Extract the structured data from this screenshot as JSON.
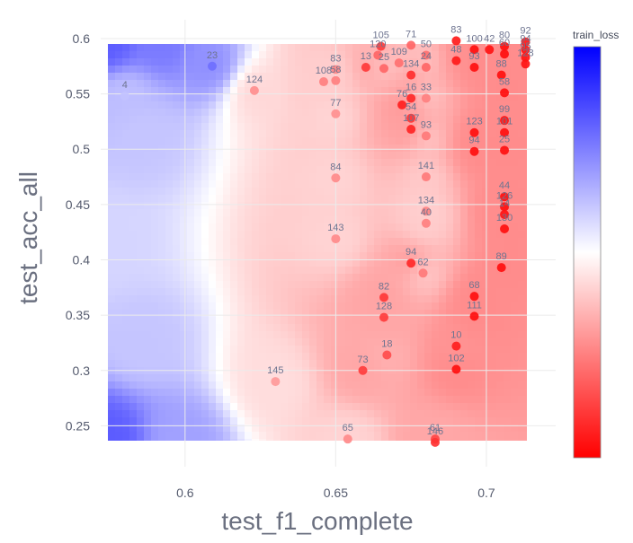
{
  "chart_data": {
    "type": "scatter",
    "title": "",
    "xlabel": "test_f1_complete",
    "ylabel": "test_acc_all",
    "xlim": [
      0.572,
      0.723
    ],
    "ylim": [
      0.213,
      0.617
    ],
    "x_ticks": [
      0.6,
      0.65,
      0.7
    ],
    "x_tick_labels": [
      "0.6",
      "0.65",
      "0.7"
    ],
    "y_ticks": [
      0.25,
      0.3,
      0.35,
      0.4,
      0.45,
      0.5,
      0.55,
      0.6
    ],
    "y_tick_labels": [
      "0.25",
      "0.3",
      "0.35",
      "0.4",
      "0.45",
      "0.5",
      "0.55",
      "0.6"
    ],
    "grid": true,
    "background": "interpolated heatmap of train_loss (blue = high, white = mid, red = low)",
    "colorbar": {
      "title": "train_loss",
      "position": "right",
      "colors": [
        "#ff0000",
        "#ffffff",
        "#0000ff"
      ]
    },
    "colors": {
      "high": "#0000ff",
      "mid": "#ffffff",
      "low": "#ff0000"
    },
    "points": [
      {
        "label": "4",
        "x": 0.58,
        "y": 0.548,
        "value": 0.62
      },
      {
        "label": "23",
        "x": 0.609,
        "y": 0.575,
        "value": 0.78
      },
      {
        "label": "124",
        "x": 0.623,
        "y": 0.553,
        "value": 0.28
      },
      {
        "label": "108",
        "x": 0.646,
        "y": 0.561,
        "value": 0.25
      },
      {
        "label": "83",
        "x": 0.65,
        "y": 0.572,
        "value": 0.26
      },
      {
        "label": "58",
        "x": 0.65,
        "y": 0.562,
        "value": 0.25
      },
      {
        "label": "77",
        "x": 0.65,
        "y": 0.532,
        "value": 0.28
      },
      {
        "label": "84",
        "x": 0.65,
        "y": 0.474,
        "value": 0.27
      },
      {
        "label": "143",
        "x": 0.65,
        "y": 0.419,
        "value": 0.27
      },
      {
        "label": "145",
        "x": 0.63,
        "y": 0.29,
        "value": 0.3
      },
      {
        "label": "65",
        "x": 0.654,
        "y": 0.238,
        "value": 0.27
      },
      {
        "label": "73",
        "x": 0.659,
        "y": 0.3,
        "value": 0.12
      },
      {
        "label": "18",
        "x": 0.667,
        "y": 0.314,
        "value": 0.15
      },
      {
        "label": "128",
        "x": 0.666,
        "y": 0.348,
        "value": 0.12
      },
      {
        "label": "82",
        "x": 0.666,
        "y": 0.366,
        "value": 0.11
      },
      {
        "label": "13",
        "x": 0.66,
        "y": 0.574,
        "value": 0.11
      },
      {
        "label": "105",
        "x": 0.665,
        "y": 0.593,
        "value": 0.12
      },
      {
        "label": "120",
        "x": 0.664,
        "y": 0.585,
        "value": 0.2
      },
      {
        "label": "25",
        "x": 0.666,
        "y": 0.573,
        "value": 0.2
      },
      {
        "label": "109",
        "x": 0.671,
        "y": 0.578,
        "value": 0.22
      },
      {
        "label": "76",
        "x": 0.672,
        "y": 0.54,
        "value": 0.06
      },
      {
        "label": "16",
        "x": 0.675,
        "y": 0.546,
        "value": 0.08
      },
      {
        "label": "54",
        "x": 0.675,
        "y": 0.528,
        "value": 0.1
      },
      {
        "label": "107",
        "x": 0.675,
        "y": 0.518,
        "value": 0.07
      },
      {
        "label": "134",
        "x": 0.675,
        "y": 0.567,
        "value": 0.09
      },
      {
        "label": "33",
        "x": 0.68,
        "y": 0.546,
        "value": 0.25
      },
      {
        "label": "93",
        "x": 0.68,
        "y": 0.512,
        "value": 0.24
      },
      {
        "label": "141",
        "x": 0.68,
        "y": 0.475,
        "value": 0.24
      },
      {
        "label": "134",
        "x": 0.68,
        "y": 0.444,
        "value": 0.26
      },
      {
        "label": "40",
        "x": 0.68,
        "y": 0.433,
        "value": 0.25
      },
      {
        "label": "94",
        "x": 0.675,
        "y": 0.397,
        "value": 0.08
      },
      {
        "label": "62",
        "x": 0.679,
        "y": 0.388,
        "value": 0.24
      },
      {
        "label": "71",
        "x": 0.675,
        "y": 0.594,
        "value": 0.2
      },
      {
        "label": "50",
        "x": 0.68,
        "y": 0.585,
        "value": 0.22
      },
      {
        "label": "24",
        "x": 0.68,
        "y": 0.574,
        "value": 0.2
      },
      {
        "label": "61",
        "x": 0.683,
        "y": 0.238,
        "value": 0.14
      },
      {
        "label": "146",
        "x": 0.683,
        "y": 0.235,
        "value": 0.1
      },
      {
        "label": "10",
        "x": 0.69,
        "y": 0.322,
        "value": 0.06
      },
      {
        "label": "102",
        "x": 0.69,
        "y": 0.301,
        "value": 0.03
      },
      {
        "label": "68",
        "x": 0.696,
        "y": 0.367,
        "value": 0.03
      },
      {
        "label": "111",
        "x": 0.696,
        "y": 0.349,
        "value": 0.03
      },
      {
        "label": "83",
        "x": 0.69,
        "y": 0.598,
        "value": 0.05
      },
      {
        "label": "48",
        "x": 0.69,
        "y": 0.58,
        "value": 0.05
      },
      {
        "label": "100",
        "x": 0.696,
        "y": 0.59,
        "value": 0.03
      },
      {
        "label": "93",
        "x": 0.696,
        "y": 0.574,
        "value": 0.03
      },
      {
        "label": "42",
        "x": 0.701,
        "y": 0.59,
        "value": 0.04
      },
      {
        "label": "123",
        "x": 0.696,
        "y": 0.515,
        "value": 0.03
      },
      {
        "label": "94",
        "x": 0.696,
        "y": 0.498,
        "value": 0.03
      },
      {
        "label": "88",
        "x": 0.705,
        "y": 0.567,
        "value": 0.03
      },
      {
        "label": "58",
        "x": 0.706,
        "y": 0.551,
        "value": 0.03
      },
      {
        "label": "99",
        "x": 0.706,
        "y": 0.526,
        "value": 0.04
      },
      {
        "label": "101",
        "x": 0.706,
        "y": 0.515,
        "value": 0.03
      },
      {
        "label": "25",
        "x": 0.706,
        "y": 0.499,
        "value": 0.03
      },
      {
        "label": "44",
        "x": 0.706,
        "y": 0.457,
        "value": 0.03
      },
      {
        "label": "126",
        "x": 0.706,
        "y": 0.448,
        "value": 0.03
      },
      {
        "label": "14",
        "x": 0.706,
        "y": 0.441,
        "value": 0.04
      },
      {
        "label": "130",
        "x": 0.706,
        "y": 0.428,
        "value": 0.03
      },
      {
        "label": "89",
        "x": 0.705,
        "y": 0.393,
        "value": 0.03
      },
      {
        "label": "80",
        "x": 0.706,
        "y": 0.593,
        "value": 0.03
      },
      {
        "label": "60",
        "x": 0.706,
        "y": 0.586,
        "value": 0.03
      },
      {
        "label": "92",
        "x": 0.713,
        "y": 0.597,
        "value": 0.04
      },
      {
        "label": "94",
        "x": 0.713,
        "y": 0.59,
        "value": 0.04
      },
      {
        "label": "95",
        "x": 0.713,
        "y": 0.583,
        "value": 0.04
      },
      {
        "label": "128",
        "x": 0.713,
        "y": 0.577,
        "value": 0.04
      }
    ]
  }
}
